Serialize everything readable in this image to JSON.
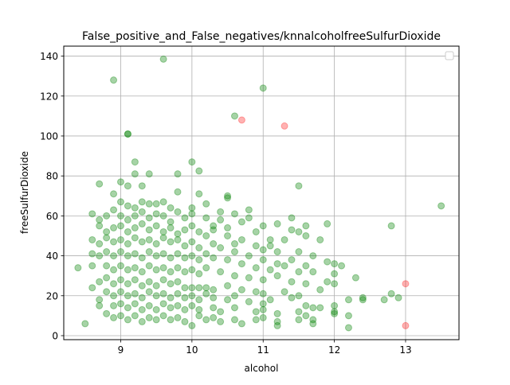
{
  "chart_data": {
    "type": "scatter",
    "title": "False_positive_and_False_negatives/knnalcoholfreeSulfurDioxide",
    "xlabel": "alcohol",
    "ylabel": "freeSulfurDioxide",
    "xlim": [
      8.2,
      13.75
    ],
    "ylim": [
      -2,
      145
    ],
    "xticks": [
      9,
      10,
      11,
      12,
      13
    ],
    "yticks": [
      0,
      20,
      40,
      60,
      80,
      100,
      120,
      140
    ],
    "grid": true,
    "legend": {
      "position": "top-right",
      "entries": []
    },
    "colors": {
      "correct": "#008000",
      "error": "#ff0000"
    },
    "series": [
      {
        "color": "#008000",
        "alpha": 0.35,
        "points": [
          [
            8.9,
            128
          ],
          [
            9.6,
            138.5
          ],
          [
            11.0,
            124
          ],
          [
            10.6,
            110
          ],
          [
            9.1,
            101
          ],
          [
            9.1,
            101
          ],
          [
            13.5,
            65
          ],
          [
            12.8,
            55
          ],
          [
            11.5,
            75
          ],
          [
            10.0,
            87
          ],
          [
            10.1,
            82.5
          ],
          [
            9.2,
            87
          ],
          [
            9.2,
            81
          ],
          [
            9.4,
            81
          ],
          [
            9.8,
            81
          ],
          [
            9.0,
            77
          ],
          [
            9.1,
            75
          ],
          [
            9.3,
            75
          ],
          [
            8.7,
            76
          ],
          [
            9.8,
            72
          ],
          [
            10.1,
            71
          ],
          [
            10.5,
            69
          ],
          [
            10.5,
            70
          ],
          [
            8.9,
            71
          ],
          [
            9.0,
            67
          ],
          [
            9.1,
            65
          ],
          [
            9.2,
            64
          ],
          [
            9.3,
            67
          ],
          [
            9.4,
            66
          ],
          [
            9.5,
            66
          ],
          [
            9.6,
            67
          ],
          [
            9.7,
            64
          ],
          [
            9.8,
            62
          ],
          [
            10.0,
            64
          ],
          [
            10.2,
            66
          ],
          [
            10.4,
            62
          ],
          [
            10.6,
            61
          ],
          [
            10.8,
            63
          ],
          [
            10.8,
            59
          ],
          [
            11.0,
            55
          ],
          [
            11.2,
            56
          ],
          [
            11.4,
            59
          ],
          [
            11.5,
            52
          ],
          [
            11.6,
            55
          ],
          [
            11.8,
            48
          ],
          [
            11.9,
            56
          ],
          [
            8.6,
            61
          ],
          [
            8.7,
            58
          ],
          [
            8.8,
            60
          ],
          [
            8.9,
            63
          ],
          [
            9.0,
            60
          ],
          [
            9.1,
            58
          ],
          [
            9.2,
            60
          ],
          [
            9.3,
            62
          ],
          [
            9.4,
            59
          ],
          [
            9.5,
            61
          ],
          [
            9.6,
            60
          ],
          [
            9.7,
            57
          ],
          [
            9.9,
            59
          ],
          [
            10.0,
            61
          ],
          [
            10.2,
            59
          ],
          [
            10.3,
            55
          ],
          [
            10.4,
            58
          ],
          [
            10.5,
            54
          ],
          [
            10.7,
            57
          ],
          [
            10.9,
            52
          ],
          [
            11.1,
            48
          ],
          [
            11.3,
            48
          ],
          [
            11.4,
            53
          ],
          [
            11.6,
            50
          ],
          [
            8.7,
            55
          ],
          [
            8.8,
            52
          ],
          [
            8.9,
            54
          ],
          [
            9.0,
            55
          ],
          [
            9.1,
            52
          ],
          [
            9.2,
            54
          ],
          [
            9.3,
            56
          ],
          [
            9.4,
            53
          ],
          [
            9.5,
            55
          ],
          [
            9.6,
            52
          ],
          [
            9.7,
            54
          ],
          [
            9.8,
            51
          ],
          [
            9.9,
            53
          ],
          [
            10.0,
            55
          ],
          [
            10.1,
            52
          ],
          [
            10.2,
            50
          ],
          [
            10.3,
            53
          ],
          [
            10.5,
            50
          ],
          [
            10.6,
            46
          ],
          [
            10.7,
            48
          ],
          [
            10.9,
            45
          ],
          [
            11.0,
            43
          ],
          [
            11.1,
            45
          ],
          [
            11.2,
            42
          ],
          [
            11.5,
            42
          ],
          [
            11.7,
            40
          ],
          [
            8.6,
            48
          ],
          [
            8.7,
            46
          ],
          [
            8.8,
            49
          ],
          [
            8.9,
            47
          ],
          [
            9.0,
            48
          ],
          [
            9.1,
            46
          ],
          [
            9.2,
            49
          ],
          [
            9.3,
            47
          ],
          [
            9.4,
            48
          ],
          [
            9.5,
            46
          ],
          [
            9.6,
            49
          ],
          [
            9.7,
            47
          ],
          [
            9.8,
            48
          ],
          [
            9.9,
            45
          ],
          [
            10.0,
            47
          ],
          [
            10.1,
            44
          ],
          [
            10.3,
            46
          ],
          [
            10.4,
            44
          ],
          [
            10.6,
            42
          ],
          [
            10.8,
            40
          ],
          [
            11.0,
            38
          ],
          [
            11.2,
            36
          ],
          [
            11.4,
            38
          ],
          [
            11.6,
            35
          ],
          [
            11.9,
            37
          ],
          [
            12.0,
            36
          ],
          [
            12.1,
            35
          ],
          [
            8.6,
            41
          ],
          [
            8.7,
            40
          ],
          [
            8.8,
            42
          ],
          [
            8.9,
            40
          ],
          [
            9.0,
            42
          ],
          [
            9.1,
            40
          ],
          [
            9.2,
            41
          ],
          [
            9.3,
            39
          ],
          [
            9.4,
            42
          ],
          [
            9.5,
            40
          ],
          [
            9.6,
            41
          ],
          [
            9.7,
            39
          ],
          [
            9.8,
            41
          ],
          [
            9.9,
            39
          ],
          [
            10.0,
            40
          ],
          [
            10.1,
            38
          ],
          [
            10.2,
            41
          ],
          [
            10.3,
            39
          ],
          [
            10.5,
            38
          ],
          [
            10.7,
            36
          ],
          [
            10.9,
            34
          ],
          [
            11.1,
            33
          ],
          [
            11.3,
            35
          ],
          [
            11.5,
            32
          ],
          [
            11.7,
            32
          ],
          [
            12.0,
            31
          ],
          [
            12.3,
            29
          ],
          [
            8.4,
            34
          ],
          [
            8.6,
            35
          ],
          [
            8.8,
            35
          ],
          [
            8.9,
            33
          ],
          [
            9.0,
            35
          ],
          [
            9.1,
            33
          ],
          [
            9.2,
            34
          ],
          [
            9.3,
            32
          ],
          [
            9.4,
            35
          ],
          [
            9.5,
            33
          ],
          [
            9.6,
            34
          ],
          [
            9.7,
            32
          ],
          [
            9.8,
            34
          ],
          [
            9.9,
            32
          ],
          [
            10.0,
            33
          ],
          [
            10.1,
            31
          ],
          [
            10.2,
            34
          ],
          [
            10.4,
            32
          ],
          [
            10.6,
            30
          ],
          [
            10.8,
            29
          ],
          [
            11.0,
            28
          ],
          [
            11.2,
            30
          ],
          [
            11.4,
            27
          ],
          [
            11.6,
            26
          ],
          [
            11.9,
            27
          ],
          [
            12.0,
            26
          ],
          [
            8.6,
            24
          ],
          [
            8.7,
            27
          ],
          [
            8.8,
            29
          ],
          [
            8.9,
            26
          ],
          [
            9.0,
            28
          ],
          [
            9.1,
            26
          ],
          [
            9.2,
            28
          ],
          [
            9.3,
            25
          ],
          [
            9.4,
            27
          ],
          [
            9.5,
            25
          ],
          [
            9.6,
            28
          ],
          [
            9.7,
            26
          ],
          [
            9.8,
            27
          ],
          [
            9.9,
            24
          ],
          [
            10.0,
            24
          ],
          [
            10.1,
            24
          ],
          [
            10.2,
            24
          ],
          [
            10.3,
            23
          ],
          [
            10.5,
            25
          ],
          [
            10.7,
            23
          ],
          [
            10.9,
            22
          ],
          [
            11.0,
            21
          ],
          [
            11.3,
            22
          ],
          [
            11.5,
            20
          ],
          [
            11.8,
            23
          ],
          [
            8.8,
            22
          ],
          [
            8.9,
            20
          ],
          [
            9.0,
            22
          ],
          [
            9.1,
            20
          ],
          [
            9.2,
            21
          ],
          [
            9.3,
            19
          ],
          [
            9.4,
            22
          ],
          [
            9.5,
            20
          ],
          [
            9.6,
            21
          ],
          [
            9.7,
            19
          ],
          [
            9.8,
            21
          ],
          [
            9.9,
            19
          ],
          [
            10.0,
            20
          ],
          [
            10.1,
            18
          ],
          [
            10.2,
            21
          ],
          [
            10.3,
            19
          ],
          [
            10.5,
            18
          ],
          [
            10.6,
            20
          ],
          [
            10.8,
            17
          ],
          [
            11.0,
            16
          ],
          [
            11.1,
            18
          ],
          [
            11.4,
            19
          ],
          [
            11.6,
            15
          ],
          [
            12.0,
            15
          ],
          [
            12.2,
            18
          ],
          [
            12.4,
            19
          ],
          [
            12.4,
            18
          ],
          [
            12.7,
            18
          ],
          [
            12.8,
            21
          ],
          [
            12.9,
            19
          ],
          [
            8.7,
            18
          ],
          [
            8.9,
            15
          ],
          [
            9.0,
            16
          ],
          [
            9.1,
            14
          ],
          [
            9.2,
            16
          ],
          [
            9.3,
            13
          ],
          [
            9.4,
            15
          ],
          [
            9.5,
            13
          ],
          [
            9.6,
            16
          ],
          [
            9.7,
            14
          ],
          [
            9.8,
            15
          ],
          [
            9.9,
            13
          ],
          [
            10.0,
            15
          ],
          [
            10.1,
            13
          ],
          [
            10.3,
            14
          ],
          [
            10.4,
            12
          ],
          [
            10.6,
            14
          ],
          [
            10.9,
            12
          ],
          [
            11.0,
            13
          ],
          [
            11.2,
            11
          ],
          [
            11.5,
            12
          ],
          [
            11.7,
            14
          ],
          [
            11.8,
            14
          ],
          [
            12.0,
            12
          ],
          [
            8.7,
            15
          ],
          [
            8.8,
            11
          ],
          [
            8.9,
            9
          ],
          [
            9.0,
            10
          ],
          [
            9.1,
            8
          ],
          [
            9.2,
            10
          ],
          [
            9.3,
            7
          ],
          [
            9.4,
            9
          ],
          [
            9.5,
            8
          ],
          [
            9.6,
            10
          ],
          [
            9.7,
            8
          ],
          [
            9.8,
            9
          ],
          [
            9.9,
            7
          ],
          [
            10.0,
            5
          ],
          [
            10.1,
            10
          ],
          [
            10.2,
            8
          ],
          [
            10.3,
            9
          ],
          [
            10.4,
            7
          ],
          [
            10.6,
            8
          ],
          [
            10.7,
            6
          ],
          [
            10.9,
            8
          ],
          [
            11.0,
            9
          ],
          [
            11.2,
            7
          ],
          [
            11.2,
            5
          ],
          [
            11.5,
            8
          ],
          [
            11.6,
            10
          ],
          [
            11.7,
            6
          ],
          [
            11.7,
            8
          ],
          [
            12.0,
            11
          ],
          [
            12.2,
            10
          ],
          [
            12.2,
            4
          ],
          [
            8.5,
            6
          ]
        ]
      },
      {
        "color": "#ff0000",
        "alpha": 0.3,
        "points": [
          [
            10.7,
            108
          ],
          [
            11.3,
            105
          ],
          [
            13.0,
            26
          ],
          [
            13.0,
            5
          ]
        ]
      }
    ]
  }
}
